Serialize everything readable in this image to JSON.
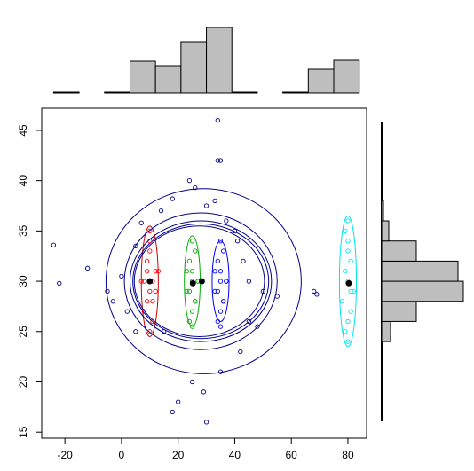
{
  "chart_data": [
    {
      "type": "scatter",
      "xlim": [
        -28.2,
        86.6
      ],
      "ylim": [
        14.4,
        47.2
      ],
      "xticks": [
        -20,
        0,
        20,
        40,
        60,
        80
      ],
      "yticks": [
        15,
        20,
        25,
        30,
        35,
        40,
        45
      ],
      "series": [
        {
          "color": "#00008b",
          "x": [
            -24,
            -22,
            -12,
            -5,
            -3,
            0,
            2,
            5,
            7,
            14,
            18,
            24,
            26,
            30,
            33,
            34,
            35,
            34,
            37,
            41,
            43,
            45,
            45,
            42,
            35,
            29,
            25,
            20,
            18,
            30,
            55,
            68,
            69,
            40,
            15,
            5,
            48,
            50
          ],
          "y": [
            33.6,
            29.8,
            31.3,
            29,
            28,
            30.5,
            27,
            33.5,
            35.8,
            37,
            38.2,
            40,
            39.3,
            37.5,
            38,
            42,
            42,
            46,
            36,
            34,
            32,
            30,
            26,
            23,
            21,
            19,
            20,
            18,
            17,
            16,
            28.5,
            29,
            28.7,
            35,
            25,
            25,
            25.5,
            29
          ]
        },
        {
          "color": "#ff0000",
          "x": [
            8,
            9,
            10,
            11,
            12,
            9,
            10,
            11,
            8,
            12,
            10,
            9,
            11,
            10,
            10,
            7,
            13
          ],
          "y": [
            27,
            28,
            29,
            30,
            31,
            32,
            33,
            26,
            30,
            29,
            34,
            31,
            28,
            25,
            35,
            30,
            31
          ]
        },
        {
          "color": "#00aa00",
          "x": [
            24,
            25,
            26,
            23,
            27,
            25,
            24,
            26,
            25,
            25,
            24,
            26,
            23,
            27,
            25
          ],
          "y": [
            26,
            27,
            28,
            29,
            30,
            31,
            32,
            33,
            34,
            30,
            29,
            28,
            31,
            30,
            25.5
          ]
        },
        {
          "color": "#0000ff",
          "x": [
            34,
            35,
            36,
            33,
            37,
            35,
            34,
            36,
            35,
            35,
            34,
            36,
            33,
            37,
            35
          ],
          "y": [
            26,
            27,
            28,
            29,
            30,
            31,
            32,
            33,
            34,
            30,
            29,
            28,
            31,
            30,
            25.5
          ]
        },
        {
          "color": "#00e5ee",
          "x": [
            79,
            80,
            81,
            78,
            82,
            80,
            79,
            81,
            80,
            80,
            79,
            81,
            80,
            80
          ],
          "y": [
            25,
            26,
            27,
            28,
            29,
            30,
            31,
            32,
            33,
            34,
            35,
            29,
            24,
            36
          ]
        },
        {
          "color": "#000000",
          "x": [
            10,
            25.2,
            28.4,
            80.3
          ],
          "y": [
            30,
            29.8,
            30,
            29.8
          ]
        }
      ],
      "ellipses": [
        {
          "color": "#cc0000",
          "cx": 10,
          "cy": 30,
          "rx": 3,
          "ry": 5.5
        },
        {
          "color": "#00aa00",
          "cx": 25,
          "cy": 30,
          "rx": 2.8,
          "ry": 4.5
        },
        {
          "color": "#0000ff",
          "cx": 35,
          "cy": 30,
          "rx": 3,
          "ry": 4
        },
        {
          "color": "#00e5ee",
          "cx": 80,
          "cy": 30,
          "rx": 3,
          "ry": 6.5
        },
        {
          "color": "#00008b",
          "cx": 29,
          "cy": 30,
          "rx": 34.5,
          "ry": 9.2
        },
        {
          "color": "#00008b",
          "cx": 28,
          "cy": 30,
          "rx": 27,
          "ry": 6.8
        },
        {
          "color": "#00008b",
          "cx": 28,
          "cy": 30,
          "rx": 25,
          "ry": 6
        },
        {
          "color": "#00008b",
          "cx": 28,
          "cy": 30,
          "rx": 24,
          "ry": 5.7
        },
        {
          "color": "#00008b",
          "cx": 27.5,
          "cy": 30,
          "rx": 23,
          "ry": 5.5
        }
      ]
    },
    {
      "type": "histogram",
      "color": "#bebebe",
      "bins": [
        -24,
        -15,
        -6,
        3,
        12,
        21,
        30,
        39,
        48,
        57,
        66,
        75,
        84
      ],
      "values": [
        1,
        0,
        1,
        36,
        31,
        58,
        74,
        1,
        0,
        1,
        27,
        37
      ]
    },
    {
      "type": "histogram",
      "orientation": "horizontal",
      "color": "#bebebe",
      "bins": [
        24,
        26,
        28,
        30,
        32,
        34,
        36,
        38
      ],
      "values": [
        10,
        39,
        92,
        86,
        39,
        8,
        2
      ]
    }
  ]
}
